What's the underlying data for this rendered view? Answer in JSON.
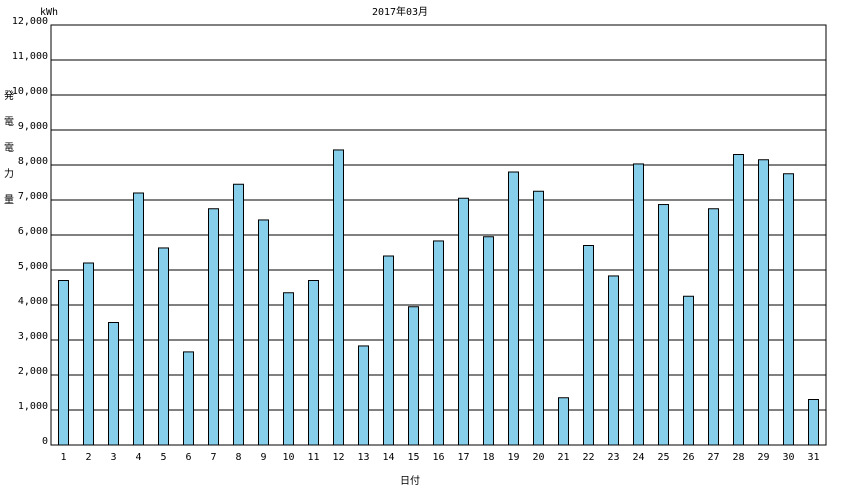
{
  "chart_data": {
    "type": "bar",
    "title": "2017年03月",
    "y_unit": "kWh",
    "y_label": "発電電力量",
    "x_label": "日付",
    "categories": [
      "1",
      "2",
      "3",
      "4",
      "5",
      "6",
      "7",
      "8",
      "9",
      "10",
      "11",
      "12",
      "13",
      "14",
      "15",
      "16",
      "17",
      "18",
      "19",
      "20",
      "21",
      "22",
      "23",
      "24",
      "25",
      "26",
      "27",
      "28",
      "29",
      "30",
      "31"
    ],
    "values": [
      4700,
      5200,
      3500,
      7200,
      5630,
      2660,
      6750,
      7450,
      6430,
      4350,
      4700,
      8430,
      2830,
      5400,
      3950,
      5830,
      7050,
      5950,
      7800,
      7250,
      1350,
      5700,
      4830,
      8030,
      6870,
      4250,
      6750,
      8300,
      8150,
      7750,
      1300
    ],
    "color": "#87ceeb",
    "ylim": [
      0,
      12000
    ],
    "yticks": [
      0,
      {
        "value": 1000,
        "label": "1,000"
      },
      {
        "value": 2000,
        "label": "2,000"
      },
      {
        "value": 3000,
        "label": "3,000"
      },
      {
        "value": 4000,
        "label": "4,000"
      },
      {
        "value": 5000,
        "label": "5,000"
      },
      {
        "value": 6000,
        "label": "6,000"
      },
      {
        "value": 7000,
        "label": "7,000"
      },
      {
        "value": 8000,
        "label": "8,000"
      },
      {
        "value": 9000,
        "label": "9,000"
      },
      {
        "value": 10000,
        "label": "10,000"
      },
      {
        "value": 11000,
        "label": "11,000"
      },
      {
        "value": 12000,
        "label": "12,000"
      }
    ],
    "grid": true
  }
}
